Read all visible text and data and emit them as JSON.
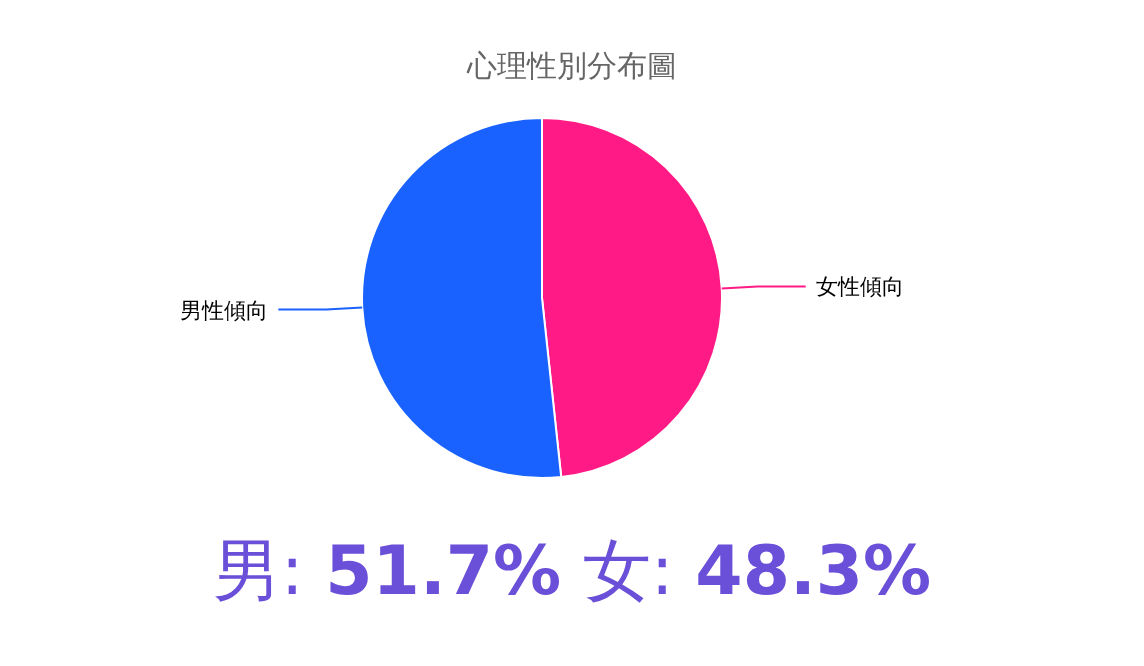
{
  "chart_data": {
    "type": "pie",
    "title": "心理性別分布圖",
    "categories": [
      "女性傾向",
      "男性傾向"
    ],
    "values": [
      48.3,
      51.7
    ],
    "colors": [
      "#ff1a85",
      "#1a62ff"
    ],
    "annotations": [
      "男: 51.7% 女: 48.3%"
    ]
  }
}
